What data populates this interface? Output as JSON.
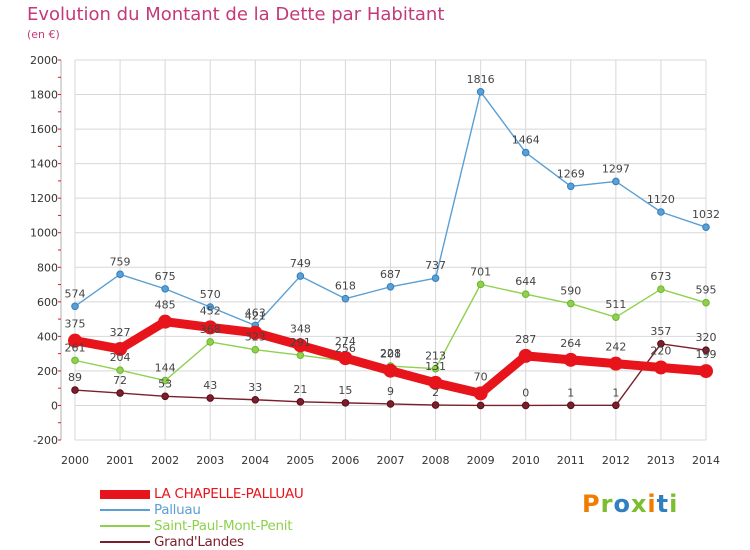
{
  "title": "Evolution du Montant de la Dette par Habitant",
  "unit": "(en €)",
  "logo": [
    "P",
    "r",
    "o",
    "x",
    "i",
    "t",
    "i"
  ],
  "colors": {
    "title": "#c33a7a",
    "grid": "#d8d8d8",
    "logo": [
      "#f07c00",
      "#7bbf2e",
      "#2f7fc1",
      "#7bbf2e",
      "#f07c00",
      "#2f7fc1",
      "#7bbf2e"
    ]
  },
  "chart_data": {
    "type": "line",
    "x": [
      2000,
      2001,
      2002,
      2003,
      2004,
      2005,
      2006,
      2007,
      2008,
      2009,
      2010,
      2011,
      2012,
      2013,
      2014
    ],
    "ylim": [
      -200,
      2000
    ],
    "yticks": [
      -200,
      0,
      200,
      400,
      600,
      800,
      1000,
      1200,
      1400,
      1600,
      1800,
      2000
    ],
    "grid": true,
    "legend": "bottom-left",
    "series": [
      {
        "name": "LA CHAPELLE-PALLUAU",
        "color": "#e8141b",
        "bold": true,
        "values": [
          375,
          327,
          485,
          452,
          421,
          348,
          274,
          201,
          131,
          70,
          287,
          264,
          242,
          220,
          199
        ],
        "labels": [
          "375",
          "327",
          "485",
          "452",
          "421",
          "348",
          "274",
          "201",
          "131",
          "70",
          "287",
          "264",
          "242",
          "220",
          "199"
        ]
      },
      {
        "name": "Palluau",
        "color": "#5b9fd3",
        "bold": false,
        "values": [
          574,
          759,
          675,
          570,
          463,
          749,
          618,
          687,
          737,
          1816,
          1464,
          1269,
          1297,
          1120,
          1032
        ],
        "labels": [
          "574",
          "759",
          "675",
          "570",
          "463",
          "749",
          "618",
          "687",
          "737",
          "1816",
          "1464",
          "1269",
          "1297",
          "1120",
          "1032"
        ]
      },
      {
        "name": "Saint-Paul-Mont-Penit",
        "color": "#8fd14f",
        "bold": false,
        "values": [
          261,
          204,
          144,
          368,
          323,
          291,
          256,
          228,
          213,
          701,
          644,
          590,
          511,
          673,
          595
        ],
        "labels": [
          "261",
          "204",
          "144",
          "368",
          "323",
          "291",
          "256",
          "228",
          "213",
          "701",
          "644",
          "590",
          "511",
          "673",
          "595"
        ]
      },
      {
        "name": "Grand'Landes",
        "color": "#7a1f2b",
        "bold": false,
        "values": [
          89,
          72,
          53,
          43,
          33,
          21,
          15,
          9,
          2,
          0,
          0,
          1,
          1,
          357,
          320
        ],
        "labels": [
          "89",
          "72",
          "53",
          "43",
          "33",
          "21",
          "15",
          "9",
          "2",
          "",
          "0",
          "1",
          "1",
          "357",
          "320"
        ]
      }
    ]
  }
}
